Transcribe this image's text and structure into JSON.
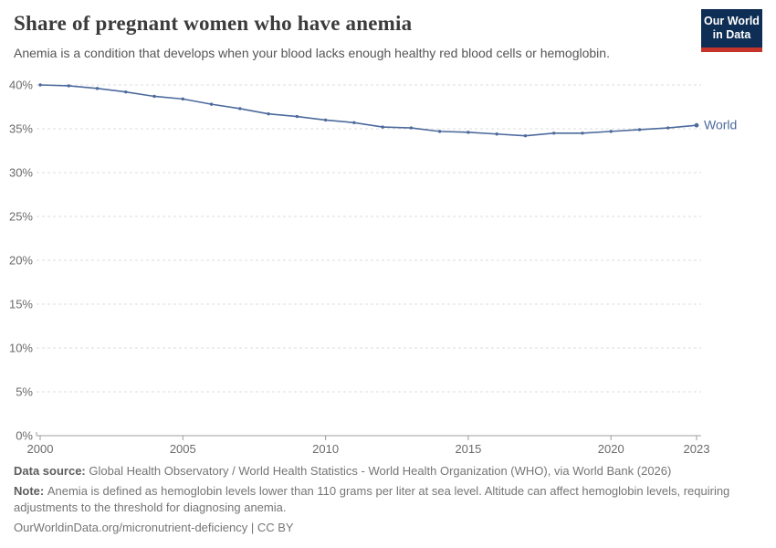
{
  "header": {
    "title": "Share of pregnant women who have anemia",
    "subtitle": "Anemia is a condition that develops when your blood lacks enough healthy red blood cells or hemoglobin.",
    "logo": {
      "line1": "Our World",
      "line2": "in Data"
    }
  },
  "chart_data": {
    "type": "line",
    "title": "Share of pregnant women who have anemia",
    "x": [
      2000,
      2001,
      2002,
      2003,
      2004,
      2005,
      2006,
      2007,
      2008,
      2009,
      2010,
      2011,
      2012,
      2013,
      2014,
      2015,
      2016,
      2017,
      2018,
      2019,
      2020,
      2021,
      2022,
      2023
    ],
    "series": [
      {
        "name": "World",
        "color": "#4C6A9C",
        "values": [
          40.0,
          39.9,
          39.6,
          39.2,
          38.7,
          38.4,
          37.8,
          37.3,
          36.7,
          36.4,
          36.0,
          35.7,
          35.2,
          35.1,
          34.7,
          34.6,
          34.4,
          34.2,
          34.5,
          34.5,
          34.7,
          34.9,
          35.1,
          35.4
        ]
      }
    ],
    "ylim": [
      0,
      40
    ],
    "yticks": [
      0,
      5,
      10,
      15,
      20,
      25,
      30,
      35,
      40
    ],
    "ytick_suffix": "%",
    "xticks": [
      2000,
      2005,
      2010,
      2015,
      2020,
      2023
    ],
    "grid": "horizontal-dashed",
    "legend": "line-end-label"
  },
  "footer": {
    "data_source_label": "Data source:",
    "data_source_text": "Global Health Observatory / World Health Statistics - World Health Organization (WHO), via World Bank (2026)",
    "note_label": "Note:",
    "note_text": "Anemia is defined as hemoglobin levels lower than 110 grams per liter at sea level. Altitude can affect hemoglobin levels, requiring adjustments to the threshold for diagnosing anemia.",
    "license": "OurWorldinData.org/micronutrient-deficiency | CC BY"
  },
  "colors": {
    "line": "#4C6A9C",
    "grid": "#dcdcdc",
    "axis": "#9c9c9c",
    "tick_text": "#6b6b6b",
    "title_text": "#3b3b3b",
    "subtitle_text": "#555555",
    "footer_text": "#757575",
    "logo_bg": "#0f2e55",
    "logo_accent": "#c4342b"
  }
}
